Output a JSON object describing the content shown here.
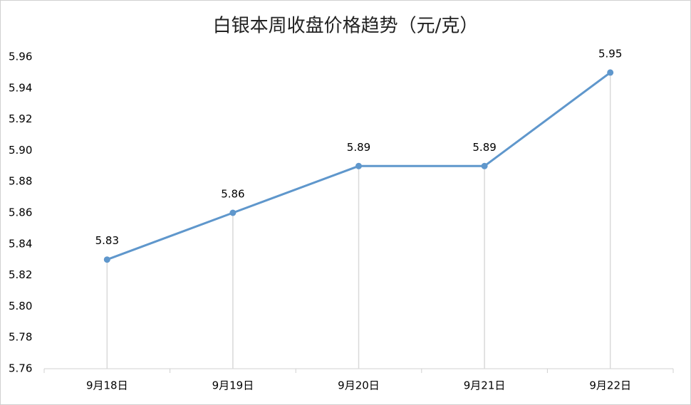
{
  "chart_data": {
    "type": "line",
    "title": "白银本周收盘价格趋势（元/克）",
    "categories": [
      "9月18日",
      "9月19日",
      "9月20日",
      "9月21日",
      "9月22日"
    ],
    "values": [
      5.83,
      5.86,
      5.89,
      5.89,
      5.95
    ],
    "color": "#5f97cc",
    "ylim": [
      5.76,
      5.96
    ],
    "yticks": [
      5.76,
      5.78,
      {
        "value": 5.8,
        "label": "5.80"
      },
      5.82,
      5.84,
      5.86,
      5.88,
      {
        "value": 5.9,
        "label": "5.90"
      },
      5.92,
      5.94,
      5.96
    ],
    "drop_lines": true
  }
}
